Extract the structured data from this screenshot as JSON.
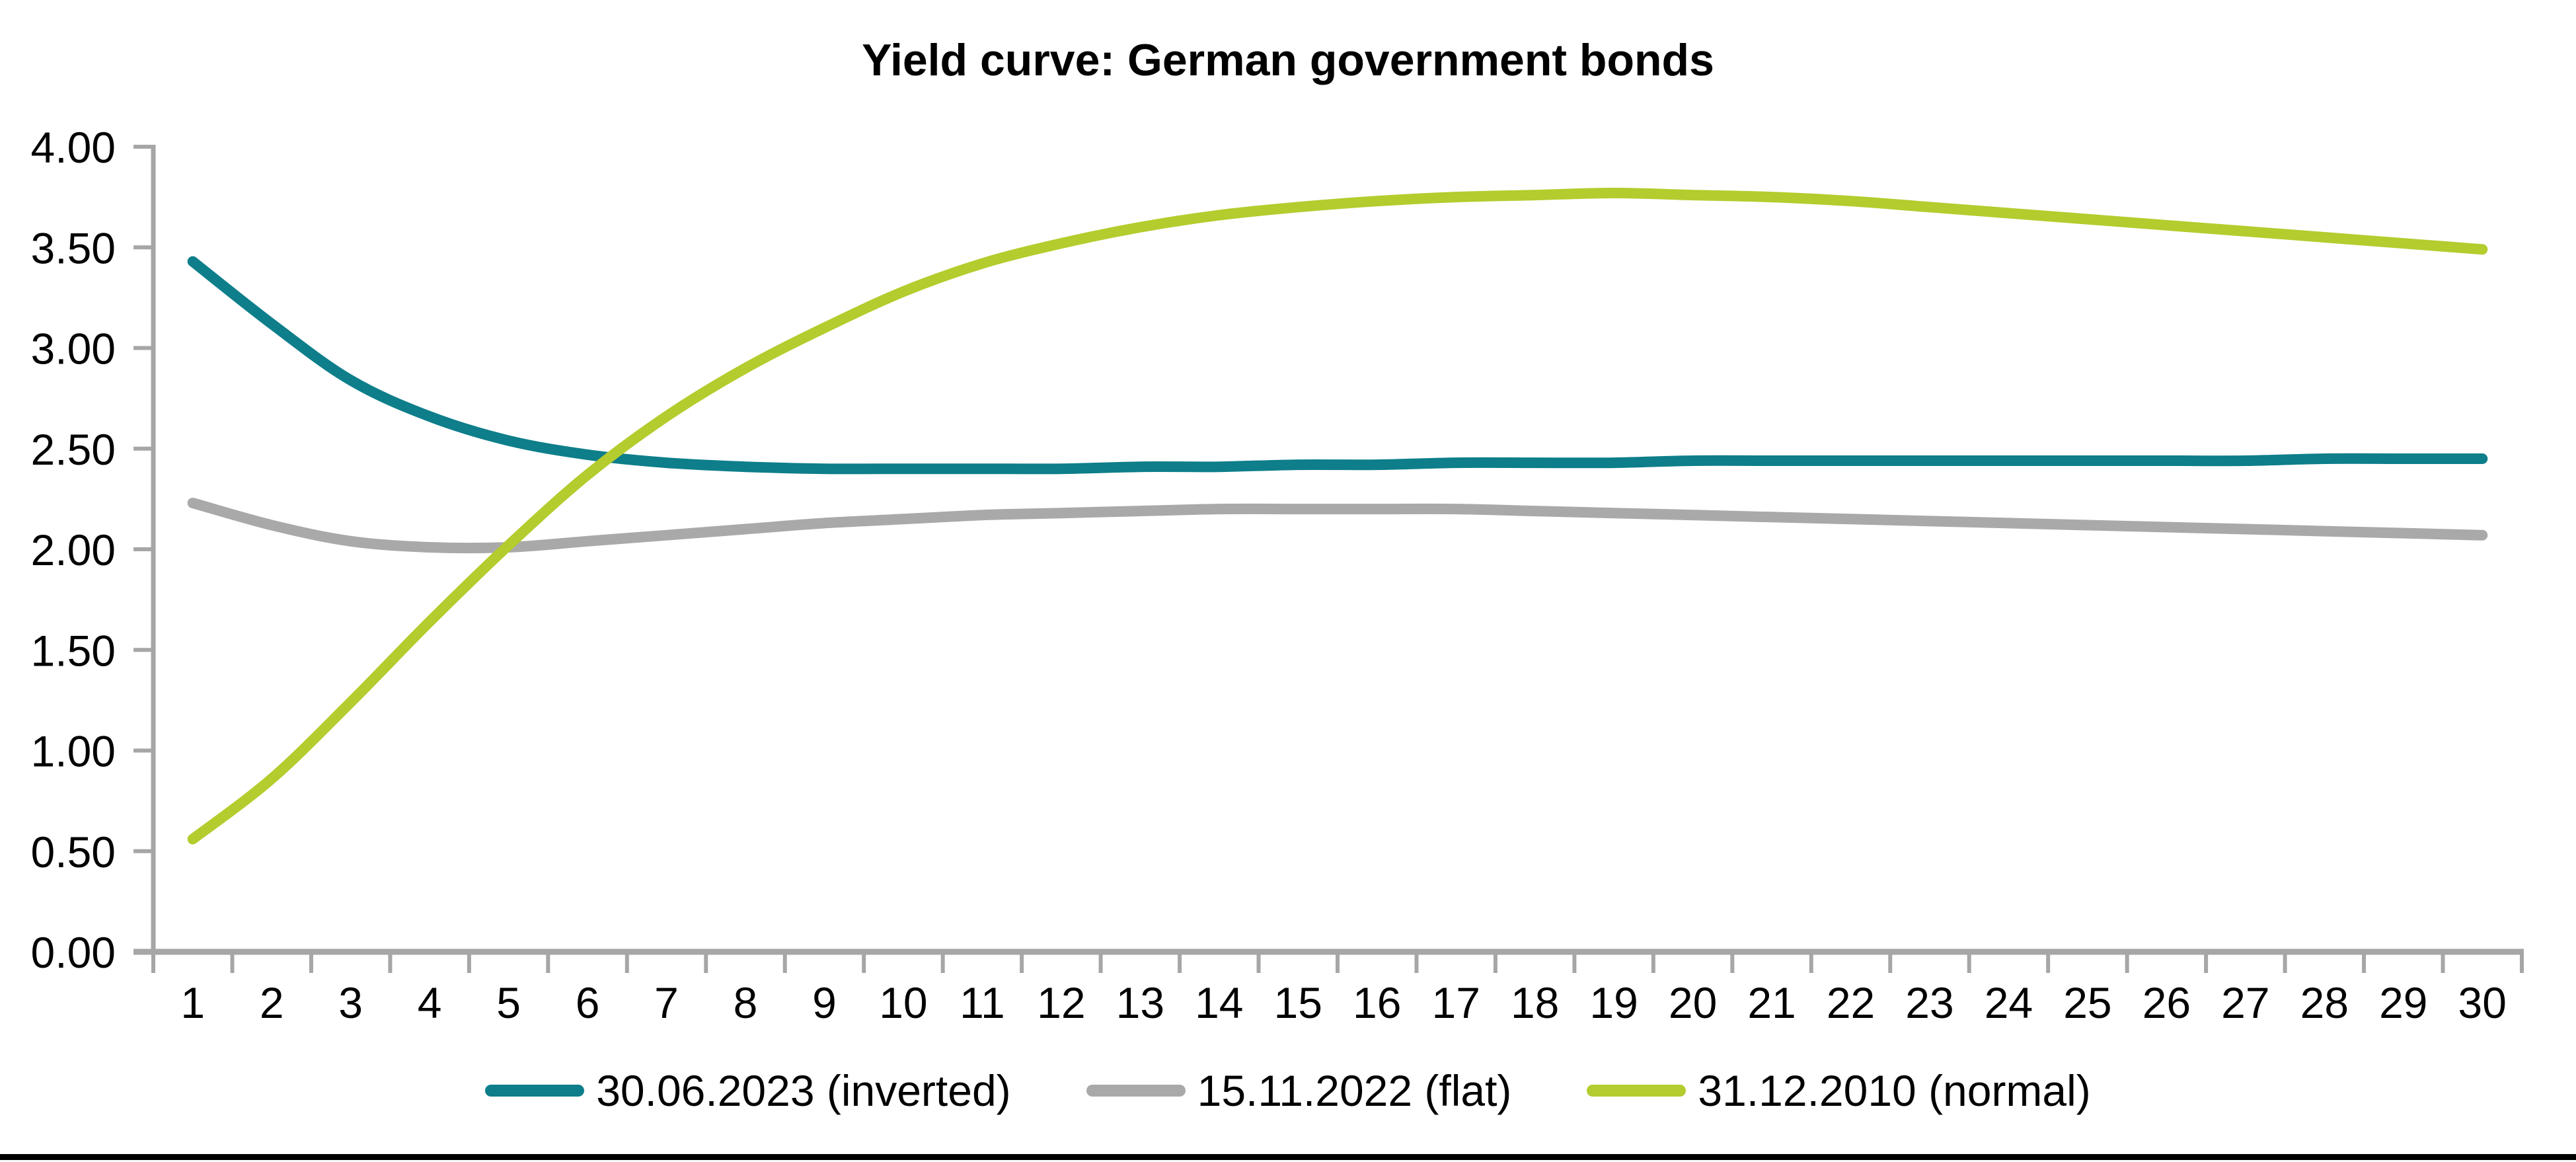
{
  "page": {
    "background_color": "#ffffff",
    "bottom_border_color": "#000000",
    "text_color": "#000000",
    "axis_color": "#a6a6a6"
  },
  "chart_data": {
    "type": "line",
    "title": "Yield curve: German government bonds",
    "xlabel": "",
    "ylabel": "",
    "ylim": [
      0,
      4
    ],
    "grid": false,
    "legend_position": "bottom",
    "y_ticks": [
      "4.00",
      "3.50",
      "3.00",
      "2.50",
      "2.00",
      "1.50",
      "1.00",
      "0.50",
      "0.00"
    ],
    "categories": [
      "1",
      "2",
      "3",
      "4",
      "5",
      "6",
      "7",
      "8",
      "9",
      "10",
      "11",
      "12",
      "13",
      "14",
      "15",
      "16",
      "17",
      "18",
      "19",
      "20",
      "21",
      "22",
      "23",
      "24",
      "25",
      "26",
      "27",
      "28",
      "29",
      "30"
    ],
    "series": [
      {
        "name": "30.06.2023 (inverted)",
        "color": "#0d7e8a",
        "values": [
          3.43,
          3.12,
          2.84,
          2.66,
          2.54,
          2.47,
          2.43,
          2.41,
          2.4,
          2.4,
          2.4,
          2.4,
          2.41,
          2.41,
          2.42,
          2.42,
          2.43,
          2.43,
          2.43,
          2.44,
          2.44,
          2.44,
          2.44,
          2.44,
          2.44,
          2.44,
          2.44,
          2.45,
          2.45,
          2.45
        ]
      },
      {
        "name": "15.11.2022 (flat)",
        "color": "#a9a9a9",
        "values": [
          2.23,
          2.12,
          2.04,
          2.01,
          2.01,
          2.04,
          2.07,
          2.1,
          2.13,
          2.15,
          2.17,
          2.18,
          2.19,
          2.2,
          2.2,
          2.2,
          2.2,
          2.19,
          2.18,
          2.17,
          2.16,
          2.15,
          2.14,
          2.13,
          2.12,
          2.11,
          2.1,
          2.09,
          2.08,
          2.07
        ]
      },
      {
        "name": "31.12.2010 (normal)",
        "color": "#b4cc2d",
        "values": [
          0.56,
          0.86,
          1.24,
          1.64,
          2.02,
          2.37,
          2.66,
          2.9,
          3.1,
          3.28,
          3.42,
          3.52,
          3.6,
          3.66,
          3.7,
          3.73,
          3.75,
          3.76,
          3.77,
          3.76,
          3.75,
          3.73,
          3.7,
          3.67,
          3.64,
          3.61,
          3.58,
          3.55,
          3.52,
          3.49
        ]
      }
    ]
  }
}
